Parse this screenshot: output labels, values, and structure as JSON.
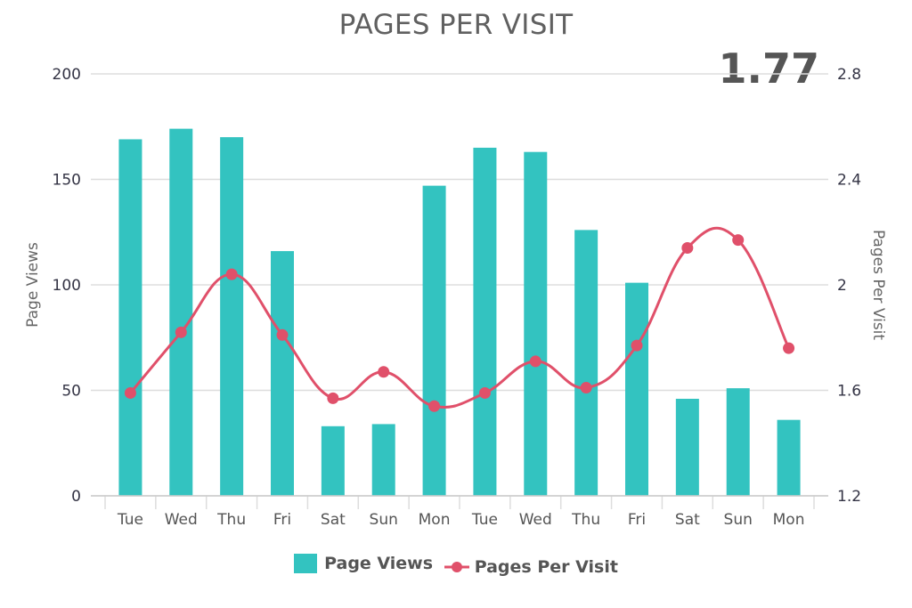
{
  "title": "PAGES PER VISIT",
  "big_value": "1.77",
  "colors": {
    "bars": "#33c3c0",
    "line": "#e0506a",
    "grid": "#dddddd",
    "text": "#555555"
  },
  "legend": [
    {
      "label": "Page Views",
      "type": "bar"
    },
    {
      "label": "Pages Per Visit",
      "type": "line"
    }
  ],
  "axes": {
    "left": {
      "title": "Page Views",
      "ticks": [
        "0",
        "50",
        "100",
        "150",
        "200"
      ]
    },
    "right": {
      "title": "Pages Per Visit",
      "ticks": [
        "1.2",
        "1.6",
        "2",
        "2.4",
        "2.8"
      ]
    }
  },
  "chart_data": {
    "type": "bar",
    "title": "PAGES PER VISIT",
    "categories": [
      "Tue",
      "Wed",
      "Thu",
      "Fri",
      "Sat",
      "Sun",
      "Mon",
      "Tue",
      "Wed",
      "Thu",
      "Fri",
      "Sat",
      "Sun",
      "Mon"
    ],
    "series": [
      {
        "name": "Page Views",
        "type": "bar",
        "axis": "left",
        "values": [
          169,
          174,
          170,
          116,
          33,
          34,
          147,
          165,
          163,
          126,
          101,
          46,
          51,
          36
        ]
      },
      {
        "name": "Pages Per Visit",
        "type": "line",
        "axis": "right",
        "smooth": true,
        "values": [
          1.59,
          1.82,
          2.04,
          1.81,
          1.57,
          1.67,
          1.54,
          1.59,
          1.71,
          1.61,
          1.77,
          2.14,
          2.17,
          1.76
        ]
      }
    ],
    "ylabel": "Page Views",
    "ylim": [
      0,
      200
    ],
    "y2label": "Pages Per Visit",
    "y2lim": [
      1.2,
      2.8
    ],
    "grid": true,
    "legend_position": "bottom",
    "annotation": "1.77"
  }
}
